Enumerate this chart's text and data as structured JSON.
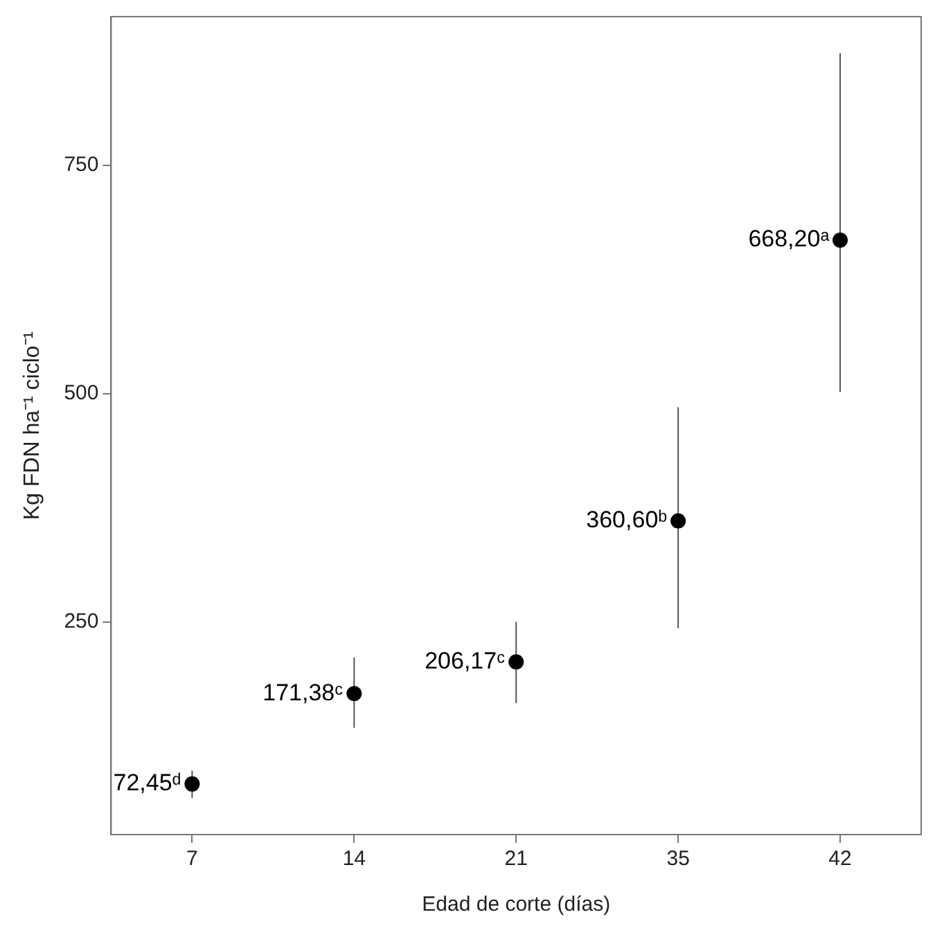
{
  "chart_data": {
    "type": "scatter",
    "xlabel": "Edad de corte (días)",
    "ylabel": "Kg FDN ha⁻¹ ciclo⁻¹",
    "categories": [
      "7",
      "14",
      "21",
      "35",
      "42"
    ],
    "values": [
      72.45,
      171.38,
      206.17,
      360.6,
      668.2
    ],
    "errors": [
      [
        57,
        87
      ],
      [
        134,
        211
      ],
      [
        161,
        250
      ],
      [
        243,
        485
      ],
      [
        502,
        873
      ]
    ],
    "value_labels": [
      "72,45ᵈ",
      "171,38ᶜ",
      "206,17ᶜ",
      "360,60ᵇ",
      "668,20ᵃ"
    ],
    "color": "#000000",
    "marker": "circle",
    "ylim": [
      17,
      913
    ],
    "yticks": [
      250,
      500,
      750
    ],
    "grid": false,
    "legend": false
  }
}
